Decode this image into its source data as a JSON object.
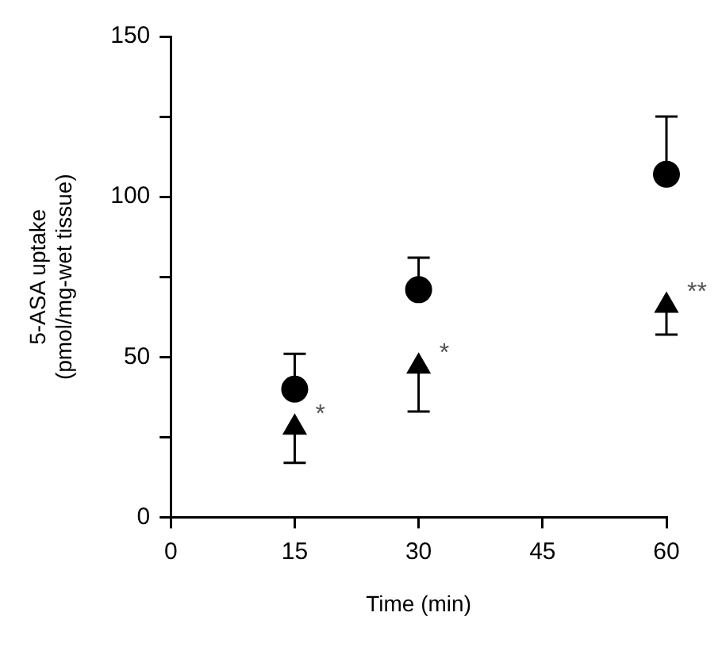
{
  "chart_data": {
    "type": "scatter",
    "xlabel": "Time (min)",
    "ylabel": "5-ASA uptake\n(pmol/mg-wet tissue)",
    "xlim": [
      0,
      60
    ],
    "xticks": [
      0,
      15,
      30,
      45,
      60
    ],
    "ylim": [
      0,
      150
    ],
    "yticks": [
      0,
      {
        "value": 25,
        "label": null
      },
      50,
      {
        "value": 75,
        "label": null
      },
      100,
      {
        "value": 125,
        "label": null
      },
      150
    ],
    "grid": false,
    "legend": false,
    "series": [
      {
        "color": "#000000",
        "marker": "circle",
        "x": [
          15,
          30,
          60
        ],
        "values": [
          40,
          71,
          107
        ],
        "errors": [
          [
            40,
            51
          ],
          [
            71,
            81
          ],
          [
            107,
            125
          ]
        ]
      },
      {
        "color": "#000000",
        "marker": "triangle",
        "x": [
          15,
          30,
          60
        ],
        "values": [
          29,
          48,
          67
        ],
        "errors": [
          [
            17,
            29
          ],
          [
            33,
            48
          ],
          [
            57,
            67
          ]
        ]
      }
    ],
    "annotations": [
      {
        "text": "*",
        "x": 15,
        "y": 29
      },
      {
        "text": "*",
        "x": 30,
        "y": 48
      },
      {
        "text": "**",
        "x": 60,
        "y": 67
      }
    ]
  }
}
